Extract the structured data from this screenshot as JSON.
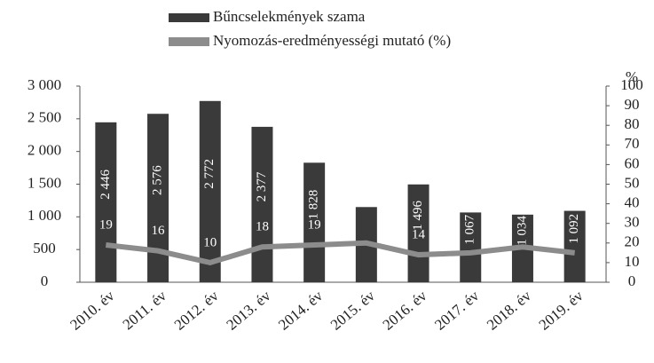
{
  "chart_data": {
    "type": "bar-line",
    "categories": [
      "2010. év",
      "2011. év",
      "2012. év",
      "2013. év",
      "2014. év",
      "2015. év",
      "2016. év",
      "2017. év",
      "2018. év",
      "2019. év"
    ],
    "series": [
      {
        "name": "Bűncselekmények szama",
        "color": "#3a3a3a",
        "type": "bar",
        "values": [
          2446,
          2576,
          2772,
          2377,
          1828,
          1150,
          1496,
          1067,
          1034,
          1092
        ],
        "value_labels": [
          "2 446",
          "2 576",
          "2 772",
          "2 377",
          "1 828",
          null,
          "1 496",
          "1 067",
          "1 034",
          "1 092"
        ]
      },
      {
        "name": "Nyomozás-eredményességi mutató (%)",
        "color": "#8c8c8c",
        "type": "line",
        "axis": "y2",
        "values": [
          19,
          16,
          10,
          18,
          19,
          20,
          14,
          15,
          18,
          15
        ],
        "value_labels": [
          "19",
          "16",
          "10",
          "18",
          "19",
          null,
          "14",
          null,
          null,
          null
        ]
      }
    ],
    "ylim": [
      0,
      3000
    ],
    "yticks": [
      0,
      500,
      {
        "value": 1000,
        "label": "1 000"
      },
      {
        "value": 1500,
        "label": "1 500"
      },
      {
        "value": 2000,
        "label": "2 000"
      },
      {
        "value": 2500,
        "label": "2 500"
      },
      {
        "value": 3000,
        "label": "3 000"
      }
    ],
    "y2lim": [
      0,
      100
    ],
    "y2ticks": [
      0,
      10,
      20,
      30,
      40,
      50,
      60,
      70,
      80,
      90,
      100
    ],
    "y2_label": "%",
    "legend": "top"
  }
}
